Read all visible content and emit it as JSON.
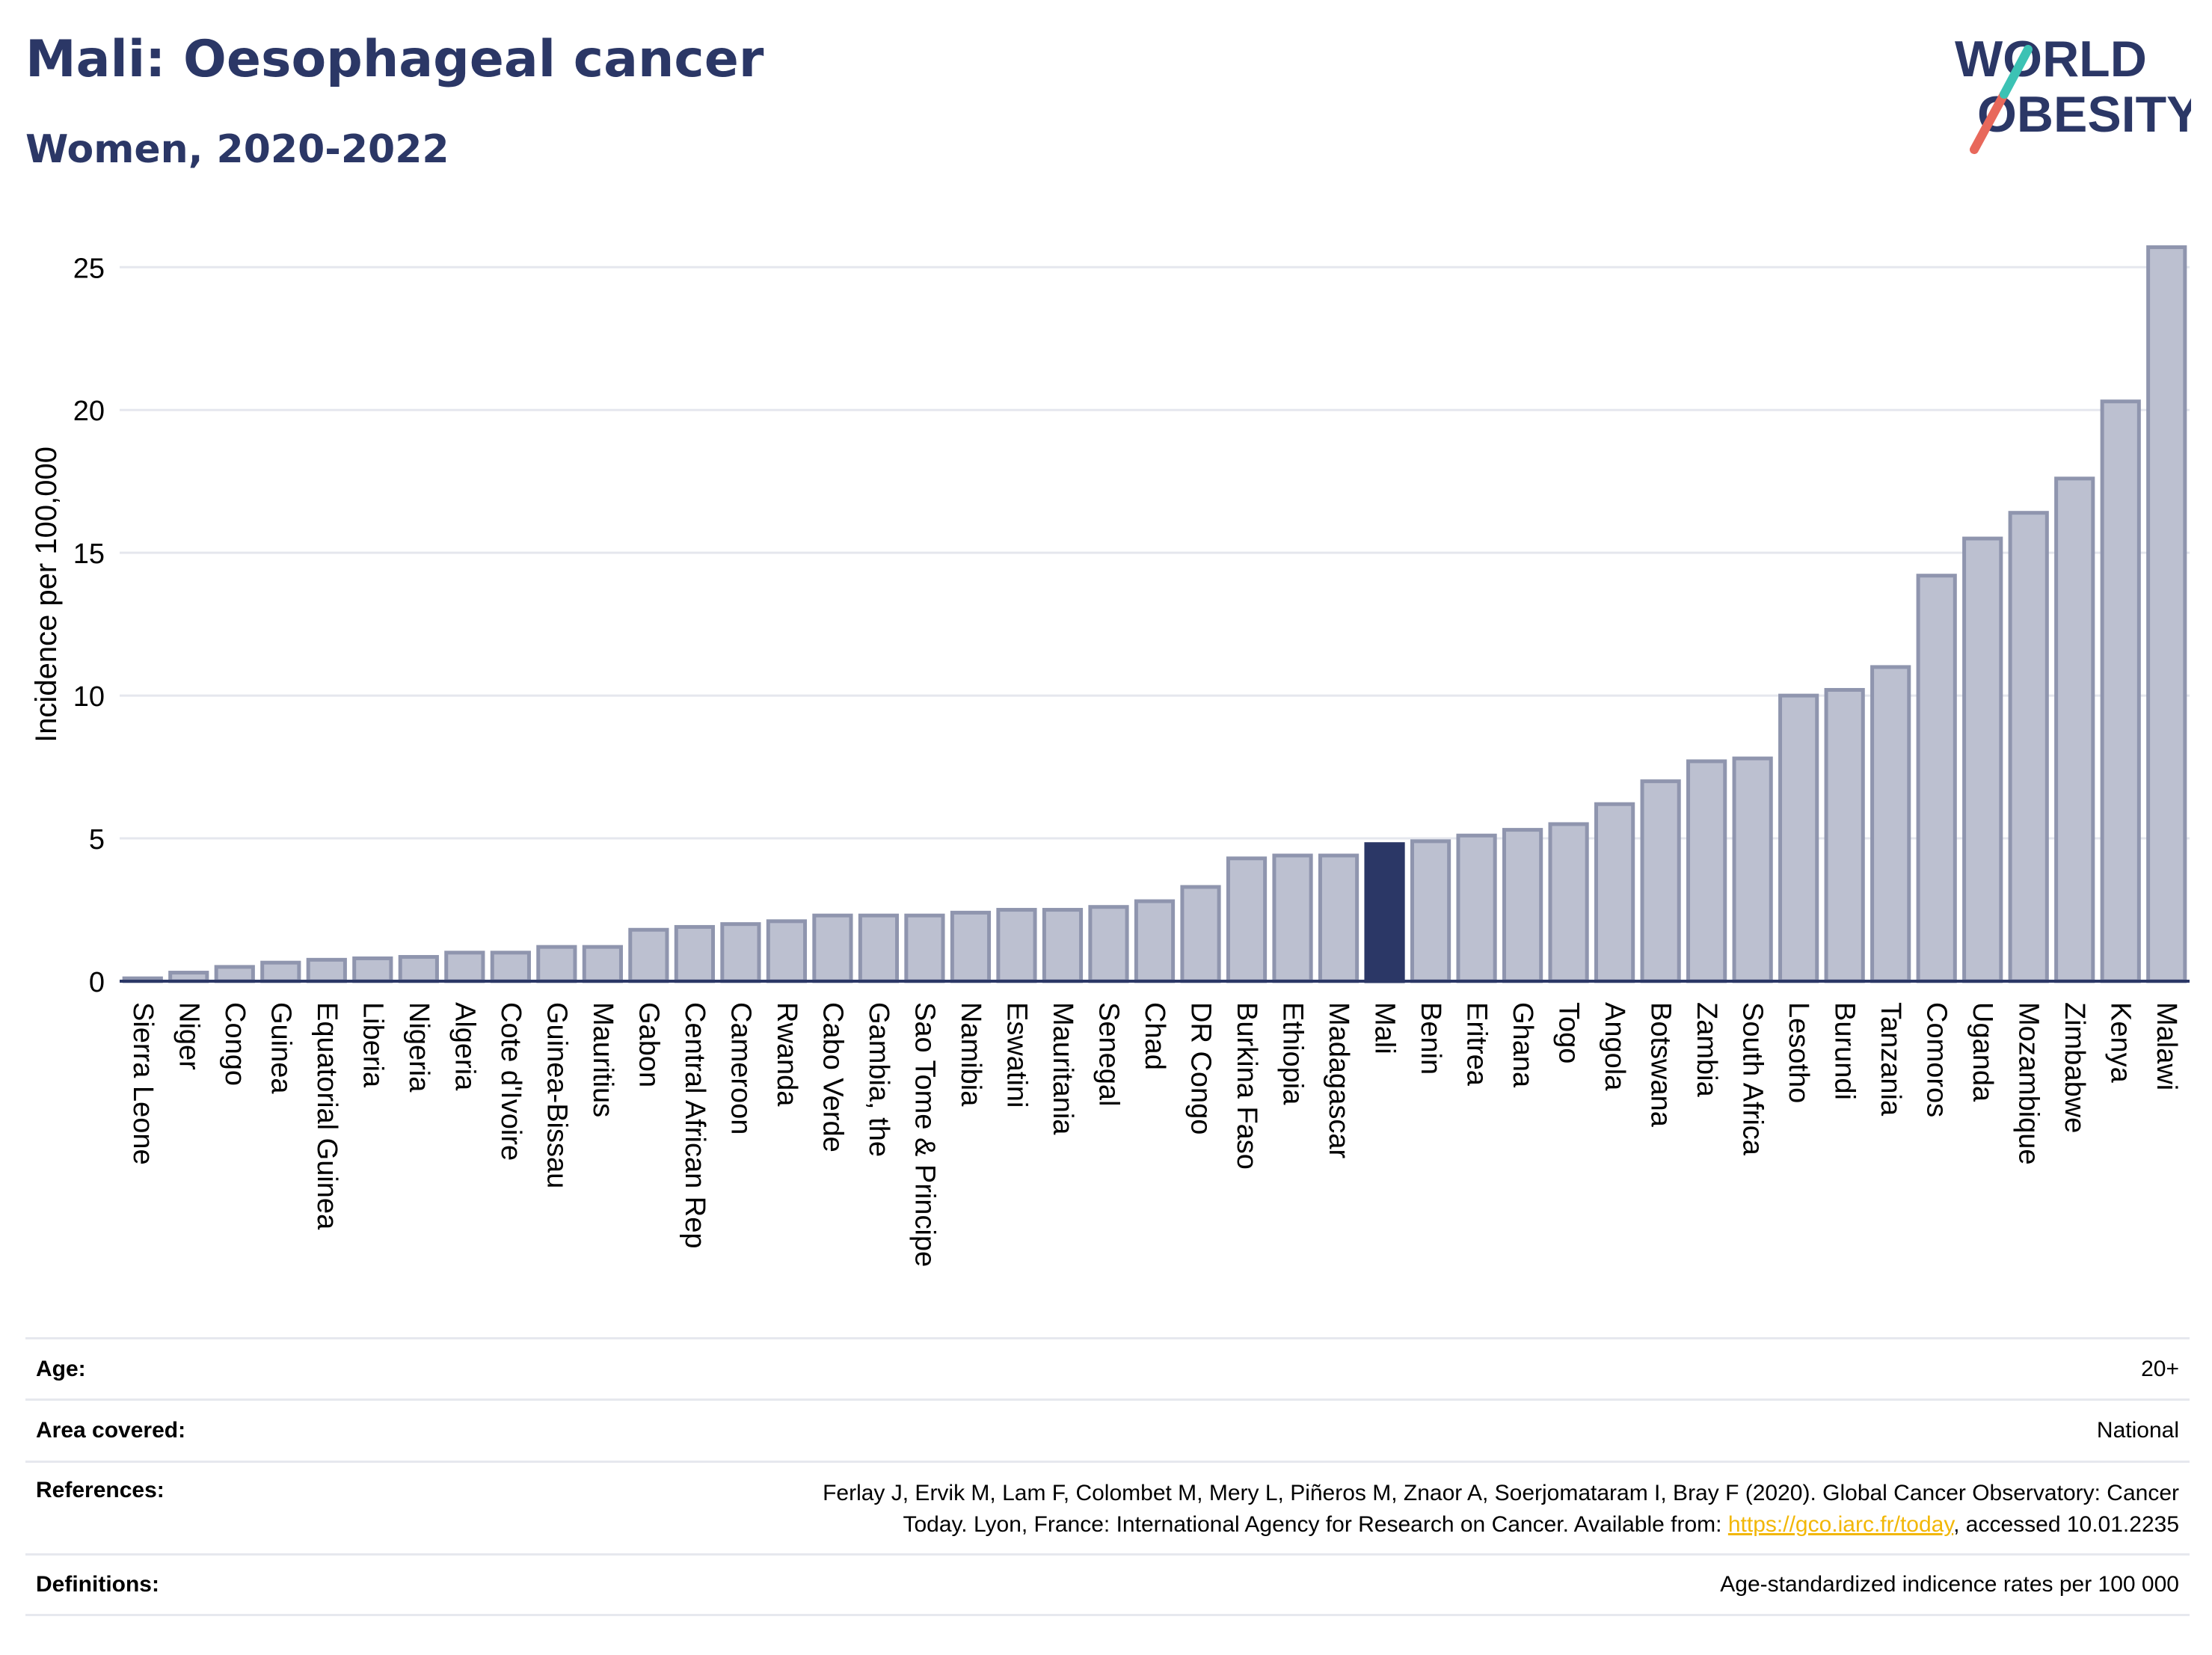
{
  "header": {
    "title": "Mali: Oesophageal cancer",
    "subtitle": "Women, 2020-2022"
  },
  "logo": {
    "line1": "WORLD",
    "line2": "OBESITY",
    "accent_teal": "#3cc2b4",
    "accent_red": "#e8685b"
  },
  "colors": {
    "bar": "#bcc0d0",
    "bar_border": "#8f95ae",
    "highlight": "#2b3766",
    "grid": "#e5e7ee"
  },
  "chart_data": {
    "type": "bar",
    "ylabel": "Incidence per 100,000",
    "ylim": [
      0,
      26.5
    ],
    "yticks": [
      0,
      5,
      10,
      15,
      20,
      25
    ],
    "highlight": "Mali",
    "categories": [
      "Sierra Leone",
      "Niger",
      "Congo",
      "Guinea",
      "Equatorial Guinea",
      "Liberia",
      "Nigeria",
      "Algeria",
      "Cote d'Ivoire",
      "Guinea-Bissau",
      "Mauritius",
      "Gabon",
      "Central African Rep",
      "Cameroon",
      "Rwanda",
      "Cabo Verde",
      "Gambia, the",
      "Sao Tome & Principe",
      "Namibia",
      "Eswatini",
      "Mauritania",
      "Senegal",
      "Chad",
      "DR Congo",
      "Burkina Faso",
      "Ethiopia",
      "Madagascar",
      "Mali",
      "Benin",
      "Eritrea",
      "Ghana",
      "Togo",
      "Angola",
      "Botswana",
      "Zambia",
      "South Africa",
      "Lesotho",
      "Burundi",
      "Tanzania",
      "Comoros",
      "Uganda",
      "Mozambique",
      "Zimbabwe",
      "Kenya",
      "Malawi"
    ],
    "values": [
      0.1,
      0.3,
      0.5,
      0.65,
      0.75,
      0.8,
      0.85,
      1.0,
      1.0,
      1.2,
      1.2,
      1.8,
      1.9,
      2.0,
      2.1,
      2.3,
      2.3,
      2.3,
      2.4,
      2.5,
      2.5,
      2.6,
      2.8,
      3.3,
      4.3,
      4.4,
      4.4,
      4.8,
      4.9,
      5.1,
      5.3,
      5.5,
      6.2,
      7.0,
      7.7,
      7.8,
      10.0,
      10.2,
      11.0,
      14.2,
      15.5,
      16.4,
      17.6,
      20.3,
      25.7
    ]
  },
  "meta": {
    "age_label": "Age:",
    "age_value": "20+",
    "area_label": "Area covered:",
    "area_value": "National",
    "references_label": "References:",
    "references_line1": "Ferlay J, Ervik M, Lam F, Colombet M, Mery L, Piñeros M, Znaor A, Soerjomataram I, Bray F (2020). Global Cancer Observatory: Cancer",
    "references_line2_pre": "Today. Lyon, France: International Agency for Research on Cancer. Available from: ",
    "references_link": "https://gco.iarc.fr/today",
    "references_line2_post": ", accessed 10.01.2235",
    "definitions_label": "Definitions:",
    "definitions_value": "Age-standardized indicence rates per 100 000"
  }
}
